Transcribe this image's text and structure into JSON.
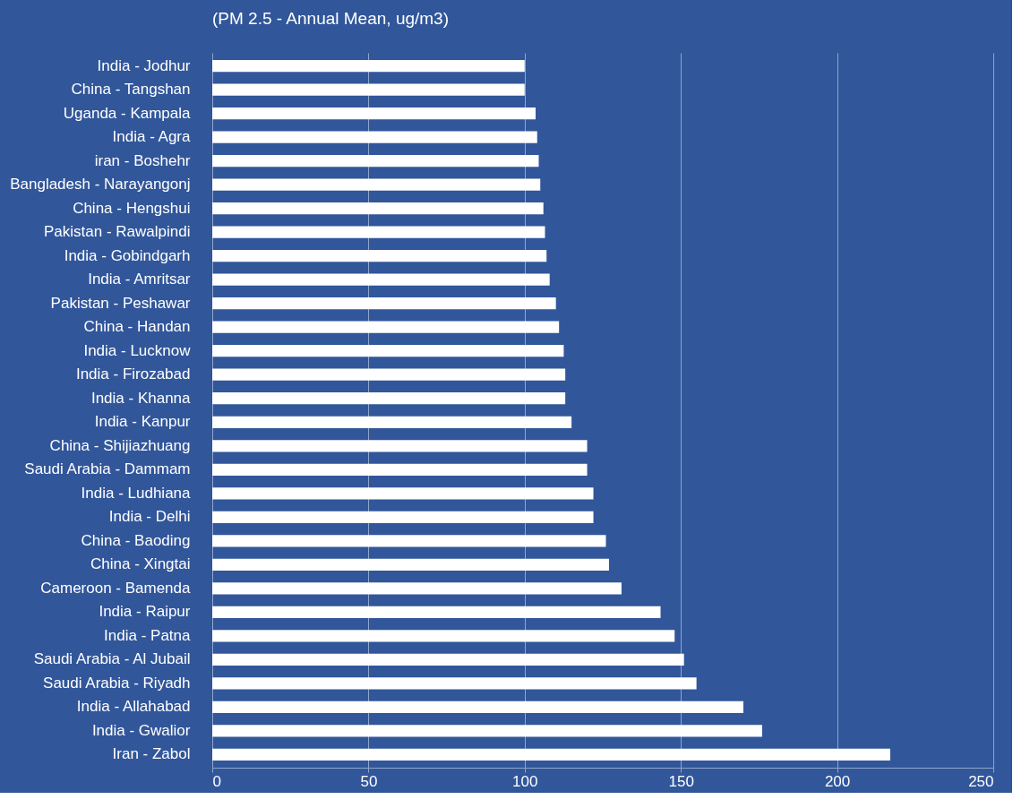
{
  "chart_data": {
    "type": "bar",
    "orientation": "horizontal",
    "title": "(PM 2.5 - Annual Mean, ug/m3)",
    "categories": [
      "India - Jodhur",
      "China - Tangshan",
      "Uganda - Kampala",
      "India - Agra",
      "iran - Boshehr",
      "Bangladesh - Narayangonj",
      "China - Hengshui",
      "Pakistan - Rawalpindi",
      "India - Gobindgarh",
      "India - Amritsar",
      "Pakistan - Peshawar",
      "China - Handan",
      "India - Lucknow",
      "India - Firozabad",
      "India - Khanna",
      "India - Kanpur",
      "China - Shijiazhuang",
      "Saudi Arabia - Dammam",
      "India - Ludhiana",
      "India - Delhi",
      "China - Baoding",
      "China - Xingtai",
      "Cameroon - Bamenda",
      "India - Raipur",
      "India - Patna",
      "Saudi Arabia - Al Jubail",
      "Saudi Arabia - Riyadh",
      "India - Allahabad",
      "India - Gwalior",
      "Iran - Zabol"
    ],
    "values": [
      100,
      100,
      103.5,
      104,
      104.5,
      105,
      106,
      106.5,
      107,
      108,
      110,
      111,
      112.5,
      113,
      113,
      115,
      120,
      120,
      122,
      122,
      126,
      127,
      131,
      143.5,
      148,
      151,
      155,
      170,
      176,
      217
    ],
    "color": "#ffffff",
    "xlim": [
      0,
      250
    ],
    "xticks": [
      0,
      50,
      100,
      150,
      200,
      250
    ],
    "grid": "x"
  }
}
